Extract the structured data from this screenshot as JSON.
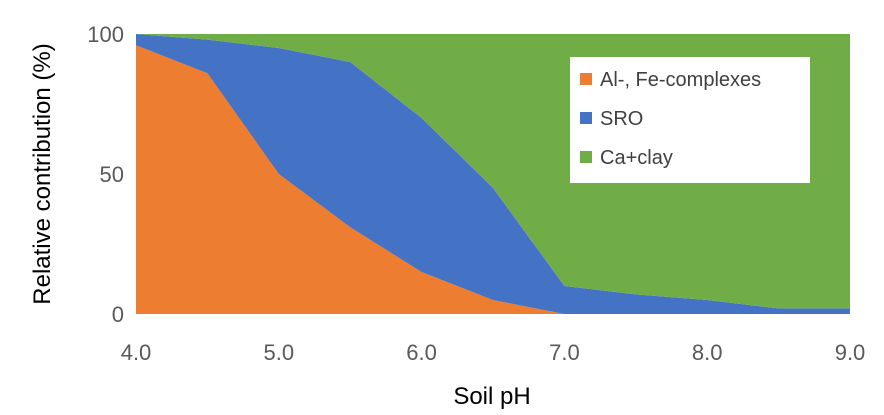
{
  "chart_data": {
    "type": "area",
    "stacked": true,
    "x": [
      4.0,
      4.5,
      5.0,
      5.5,
      6.0,
      6.5,
      7.0,
      7.5,
      8.0,
      8.5,
      9.0
    ],
    "x_tick_labels": [
      "4.0",
      "5.0",
      "6.0",
      "7.0",
      "8.0",
      "9.0"
    ],
    "x_ticks": [
      4.0,
      5.0,
      6.0,
      7.0,
      8.0,
      9.0
    ],
    "y_ticks": [
      0,
      50,
      100
    ],
    "y_tick_labels": [
      "0",
      "50",
      "100"
    ],
    "xlim": [
      4.0,
      9.0
    ],
    "ylim": [
      0,
      100
    ],
    "xlabel": "Soil pH",
    "ylabel": "Relative contribution (%)",
    "grid": false,
    "legend_position": "top-right",
    "series": [
      {
        "name": "Al-, Fe-complexes",
        "color": "#ED7D31",
        "values": [
          96,
          86,
          50,
          31,
          15,
          5,
          0,
          0,
          0,
          0,
          0
        ]
      },
      {
        "name": "SRO",
        "color": "#4472C4",
        "values": [
          4,
          12,
          45,
          59,
          55,
          40,
          10,
          7,
          5,
          2,
          2
        ]
      },
      {
        "name": "Ca+clay",
        "color": "#70AD47",
        "values": [
          0,
          2,
          5,
          10,
          30,
          55,
          90,
          93,
          95,
          98,
          98
        ]
      }
    ]
  }
}
